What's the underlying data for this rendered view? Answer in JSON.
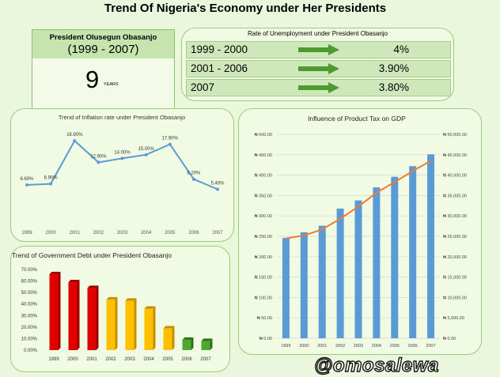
{
  "title": "Trend Of Nigeria's Economy under Her Presidents",
  "president": {
    "name": "President Olusegun Obasanjo",
    "period": "(1999 - 2007)",
    "years_number": "9",
    "years_label": "YEARS"
  },
  "colors": {
    "background": "#ebf7dc",
    "panel": "#f1fbe4",
    "border": "#9ccc7a",
    "line_blue": "#5b9bd5",
    "gdp_line": "#ed7d31",
    "bar_blue": "#5b9bd5",
    "arrow_green": "#4e9a2c",
    "debt_red": "#e00000",
    "debt_yellow": "#ffc000",
    "debt_green": "#4ea72e"
  },
  "unemployment": {
    "title": "Rate of Unemployment under President Obasanjo",
    "rows": [
      {
        "period": "1999 - 2000",
        "rate": "4%",
        "icon": "arrow-right-icon"
      },
      {
        "period": "2001 - 2006",
        "rate": "3.90%",
        "icon": "arrow-right-icon"
      },
      {
        "period": "2007",
        "rate": "3.80%",
        "icon": "arrow-right-icon"
      }
    ]
  },
  "chart_data": [
    {
      "type": "line",
      "title": "Trend of Inflation rate under President Obasanjo",
      "x": [
        "1999",
        "2000",
        "2001",
        "2002",
        "2003",
        "2004",
        "2005",
        "2006",
        "2007"
      ],
      "values": [
        6.6,
        6.9,
        18.9,
        12.9,
        14.0,
        15.0,
        17.9,
        8.2,
        5.4
      ],
      "data_labels": [
        "6.60%",
        "6.90%",
        "18.90%",
        "12.90%",
        "14.00%",
        "15.00%",
        "17.90%",
        "8.20%",
        "5.40%"
      ],
      "ylim": [
        0,
        22
      ],
      "grid": false
    },
    {
      "type": "bar",
      "title": "Trend of Government Debt under President Obasanjo",
      "categories": [
        "1999",
        "2000",
        "2001",
        "2002",
        "2003",
        "2004",
        "2005",
        "2006",
        "2007"
      ],
      "values": [
        0.66,
        0.59,
        0.54,
        0.44,
        0.43,
        0.36,
        0.19,
        0.09,
        0.08
      ],
      "bar_colors": [
        "red",
        "red",
        "red",
        "yellow",
        "yellow",
        "yellow",
        "yellow",
        "green",
        "green"
      ],
      "yticks": [
        "0.00%",
        "10.00%",
        "20.00%",
        "30.00%",
        "40.00%",
        "50.00%",
        "60.00%",
        "70.00%"
      ],
      "ylim": [
        0,
        0.7
      ],
      "grid": false
    },
    {
      "type": "bar",
      "title": "Influence of Product Tax on GDP",
      "categories": [
        "1999",
        "2000",
        "2001",
        "2002",
        "2003",
        "2004",
        "2005",
        "2006",
        "2007"
      ],
      "series": [
        {
          "type": "bar",
          "axis": "left",
          "values": [
            246,
            260,
            276,
            318,
            338,
            370,
            396,
            422,
            451
          ]
        },
        {
          "type": "line",
          "axis": "right",
          "values": [
            24500,
            25200,
            26700,
            29300,
            32300,
            35700,
            38300,
            41000,
            43500
          ]
        }
      ],
      "left_ticks": [
        "₦ 0.00",
        "₦ 50.00",
        "₦ 100.00",
        "₦ 150.00",
        "₦ 200.00",
        "₦ 250.00",
        "₦ 300.00",
        "₦ 350.00",
        "₦ 400.00",
        "₦ 450.00",
        "₦ 500.00"
      ],
      "right_ticks": [
        "₦ 0.00",
        "₦ 5,000.00",
        "₦ 10,000.00",
        "₦ 15,000.00",
        "₦ 20,000.00",
        "₦ 25,000.00",
        "₦ 30,000.00",
        "₦ 35,000.00",
        "₦ 40,000.00",
        "₦ 45,000.00",
        "₦ 50,000.00"
      ],
      "ylim_left": [
        0,
        500
      ],
      "ylim_right": [
        0,
        50000
      ],
      "grid": true
    }
  ],
  "watermark": "@omosalewa"
}
